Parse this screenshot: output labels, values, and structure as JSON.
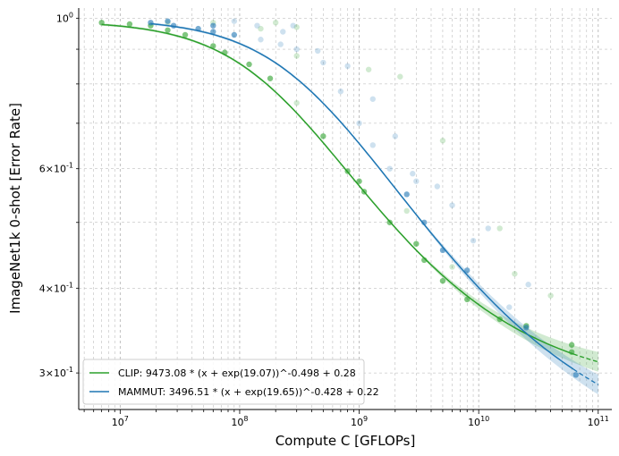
{
  "chart_data": {
    "type": "scatter",
    "xlabel": "Compute C [GFLOPs]",
    "ylabel": "ImageNet1k 0-shot [Error Rate]",
    "x_scale": "log",
    "y_scale": "log",
    "xlim": [
      4500000.0,
      130000000000.0
    ],
    "ylim": [
      0.265,
      1.035
    ],
    "x_ticks": [
      {
        "value": 10000000.0,
        "label": "10^7"
      },
      {
        "value": 100000000.0,
        "label": "10^8"
      },
      {
        "value": 1000000000.0,
        "label": "10^9"
      },
      {
        "value": 10000000000.0,
        "label": "10^10"
      },
      {
        "value": 100000000000.0,
        "label": "10^11"
      }
    ],
    "y_ticks": [
      {
        "value": 1.0,
        "label": "10^0"
      },
      {
        "value": 0.6,
        "label": "6×10^-1"
      },
      {
        "value": 0.4,
        "label": "4×10^-1"
      },
      {
        "value": 0.3,
        "label": "3×10^-1"
      }
    ],
    "grid": true,
    "legend_position": "lower-left",
    "series": [
      {
        "name": "CLIP: 9473.08 * (x + exp(19.07))^-0.498 + 0.28",
        "color": "#2ca02c",
        "fit": {
          "A": 9473.08,
          "k": 19.07,
          "alpha": 0.498,
          "c": 0.28,
          "x_solid_end": 62000000000.0,
          "x_end": 100000000000.0
        },
        "points": [
          {
            "x": 7000000.0,
            "y": 0.985
          },
          {
            "x": 12000000.0,
            "y": 0.98
          },
          {
            "x": 18000000.0,
            "y": 0.975
          },
          {
            "x": 25000000.0,
            "y": 0.96
          },
          {
            "x": 35000000.0,
            "y": 0.945
          },
          {
            "x": 60000000.0,
            "y": 0.91
          },
          {
            "x": 75000000.0,
            "y": 0.89
          },
          {
            "x": 120000000.0,
            "y": 0.855
          },
          {
            "x": 180000000.0,
            "y": 0.815
          },
          {
            "x": 300000000.0,
            "y": 0.75
          },
          {
            "x": 500000000.0,
            "y": 0.67
          },
          {
            "x": 800000000.0,
            "y": 0.595
          },
          {
            "x": 1100000000.0,
            "y": 0.555
          },
          {
            "x": 1800000000.0,
            "y": 0.5
          },
          {
            "x": 3500000000.0,
            "y": 0.44
          },
          {
            "x": 5000000000.0,
            "y": 0.41
          },
          {
            "x": 8000000000.0,
            "y": 0.385
          },
          {
            "x": 15000000000.0,
            "y": 0.36
          },
          {
            "x": 25000000000.0,
            "y": 0.352
          },
          {
            "x": 60000000000.0,
            "y": 0.322
          },
          {
            "x": 25000000.0,
            "y": 0.985
          },
          {
            "x": 60000000.0,
            "y": 0.985
          },
          {
            "x": 150000000.0,
            "y": 0.965
          },
          {
            "x": 200000000.0,
            "y": 0.985
          },
          {
            "x": 300000000.0,
            "y": 0.97
          },
          {
            "x": 300000000.0,
            "y": 0.88
          },
          {
            "x": 1200000000.0,
            "y": 0.84
          },
          {
            "x": 2200000000.0,
            "y": 0.82
          },
          {
            "x": 5000000000.0,
            "y": 0.66
          },
          {
            "x": 1000000000.0,
            "y": 0.575
          },
          {
            "x": 2500000000.0,
            "y": 0.52
          },
          {
            "x": 3000000000.0,
            "y": 0.465
          },
          {
            "x": 6000000000.0,
            "y": 0.43
          },
          {
            "x": 15000000000.0,
            "y": 0.49
          },
          {
            "x": 20000000000.0,
            "y": 0.42
          },
          {
            "x": 40000000000.0,
            "y": 0.39
          },
          {
            "x": 60000000000.0,
            "y": 0.33
          }
        ]
      },
      {
        "name": "MAMMUT: 3496.51 * (x + exp(19.65))^-0.428 + 0.22",
        "color": "#1f77b4",
        "fit": {
          "A": 3496.51,
          "k": 19.65,
          "alpha": 0.428,
          "c": 0.22,
          "x_solid_end": 62000000000.0,
          "x_end": 100000000000.0
        },
        "points": [
          {
            "x": 18000000.0,
            "y": 0.985
          },
          {
            "x": 28000000.0,
            "y": 0.975
          },
          {
            "x": 45000000.0,
            "y": 0.965
          },
          {
            "x": 60000000.0,
            "y": 0.955
          },
          {
            "x": 90000000.0,
            "y": 0.945
          },
          {
            "x": 150000000.0,
            "y": 0.93
          },
          {
            "x": 220000000.0,
            "y": 0.915
          },
          {
            "x": 300000000.0,
            "y": 0.9
          },
          {
            "x": 500000000.0,
            "y": 0.86
          },
          {
            "x": 700000000.0,
            "y": 0.78
          },
          {
            "x": 1000000000.0,
            "y": 0.7
          },
          {
            "x": 1300000000.0,
            "y": 0.65
          },
          {
            "x": 1800000000.0,
            "y": 0.6
          },
          {
            "x": 2500000000.0,
            "y": 0.55
          },
          {
            "x": 3500000000.0,
            "y": 0.5
          },
          {
            "x": 5000000000.0,
            "y": 0.455
          },
          {
            "x": 8000000000.0,
            "y": 0.425
          },
          {
            "x": 18000000000.0,
            "y": 0.375
          },
          {
            "x": 25000000000.0,
            "y": 0.35
          },
          {
            "x": 65000000000.0,
            "y": 0.298
          },
          {
            "x": 25000000.0,
            "y": 0.99
          },
          {
            "x": 60000000.0,
            "y": 0.975
          },
          {
            "x": 90000000.0,
            "y": 0.99
          },
          {
            "x": 140000000.0,
            "y": 0.975
          },
          {
            "x": 230000000.0,
            "y": 0.955
          },
          {
            "x": 280000000.0,
            "y": 0.975
          },
          {
            "x": 450000000.0,
            "y": 0.895
          },
          {
            "x": 800000000.0,
            "y": 0.85
          },
          {
            "x": 1300000000.0,
            "y": 0.76
          },
          {
            "x": 2000000000.0,
            "y": 0.67
          },
          {
            "x": 2800000000.0,
            "y": 0.59
          },
          {
            "x": 3000000000.0,
            "y": 0.575
          },
          {
            "x": 4500000000.0,
            "y": 0.565
          },
          {
            "x": 6000000000.0,
            "y": 0.53
          },
          {
            "x": 9000000000.0,
            "y": 0.47
          },
          {
            "x": 12000000000.0,
            "y": 0.49
          },
          {
            "x": 26000000000.0,
            "y": 0.405
          }
        ]
      }
    ]
  }
}
